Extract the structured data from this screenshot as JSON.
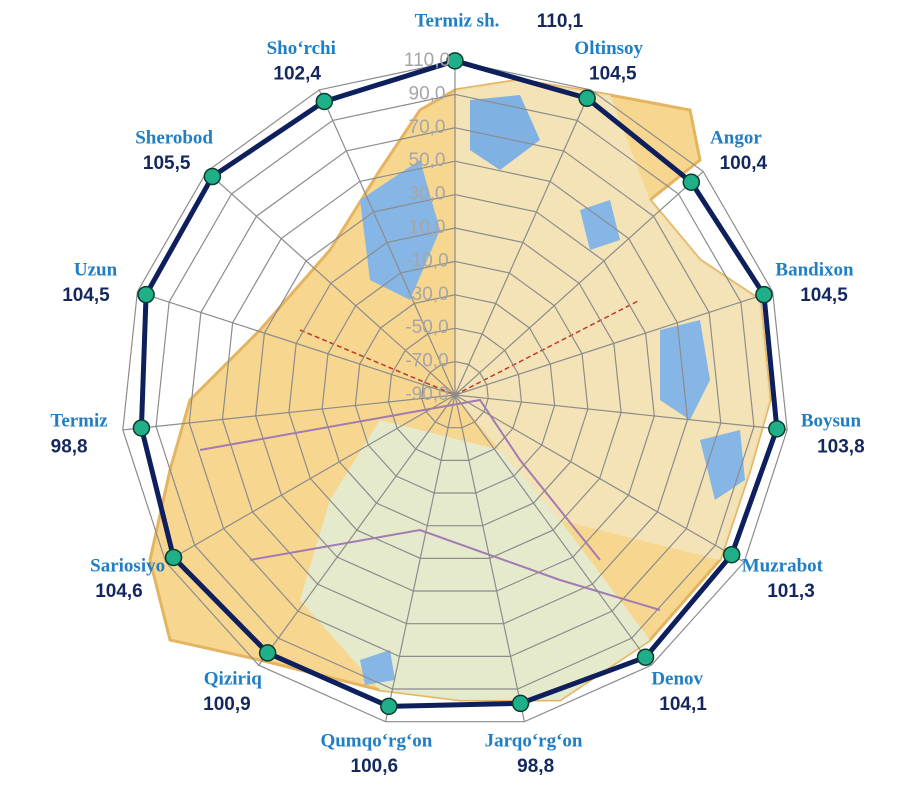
{
  "chart_data": {
    "type": "radar",
    "categories": [
      "Termiz sh.",
      "Oltinsoy",
      "Angor",
      "Bandixon",
      "Boysun",
      "Muzrabot",
      "Denov",
      "Jarqo‘rg‘on",
      "Qumqo‘rg‘on",
      "Qiziriq",
      "Sariosiyo",
      "Termiz",
      "Uzun",
      "Sherobod",
      "Sho‘rchi"
    ],
    "values": [
      110.1,
      104.5,
      100.4,
      104.5,
      103.8,
      101.3,
      104.1,
      98.8,
      100.6,
      100.9,
      104.6,
      98.8,
      104.5,
      105.5,
      102.4
    ],
    "value_labels": [
      "110,1",
      "104,5",
      "100,4",
      "104,5",
      "103,8",
      "101,3",
      "104,1",
      "98,8",
      "100,6",
      "100,9",
      "104,6",
      "98,8",
      "104,5",
      "105,5",
      "102,4"
    ],
    "color": "#0e1f5e",
    "marker_color": "#1fb08a",
    "rlim": [
      -90,
      110
    ],
    "rticks": [
      {
        "value": -90,
        "label": "-90,0"
      },
      {
        "value": -70,
        "label": "-70,0"
      },
      {
        "value": -50,
        "label": "-50,0"
      },
      {
        "value": -30,
        "label": "-30,0"
      },
      {
        "value": -10,
        "label": "-10,0"
      },
      {
        "value": 10,
        "label": "10,0"
      },
      {
        "value": 30,
        "label": "30,0"
      },
      {
        "value": 50,
        "label": "50,0"
      },
      {
        "value": 70,
        "label": "70,0"
      },
      {
        "value": 90,
        "label": "90,0"
      },
      {
        "value": 110,
        "label": "110,0"
      }
    ],
    "grid": true
  }
}
